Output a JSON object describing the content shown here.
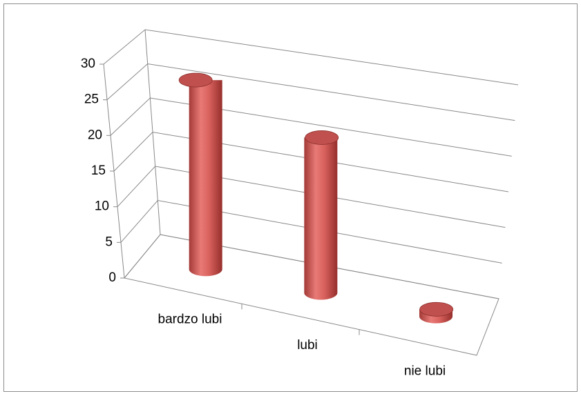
{
  "chart_data": {
    "type": "bar3d",
    "categories": [
      "bardzo lubi",
      "lubi",
      "nie lubi"
    ],
    "values": [
      27,
      22,
      1
    ],
    "color": "#c0504d",
    "ylim": [
      0,
      30
    ],
    "yticks": [
      0,
      5,
      10,
      15,
      20,
      25,
      30
    ],
    "grid": true
  }
}
